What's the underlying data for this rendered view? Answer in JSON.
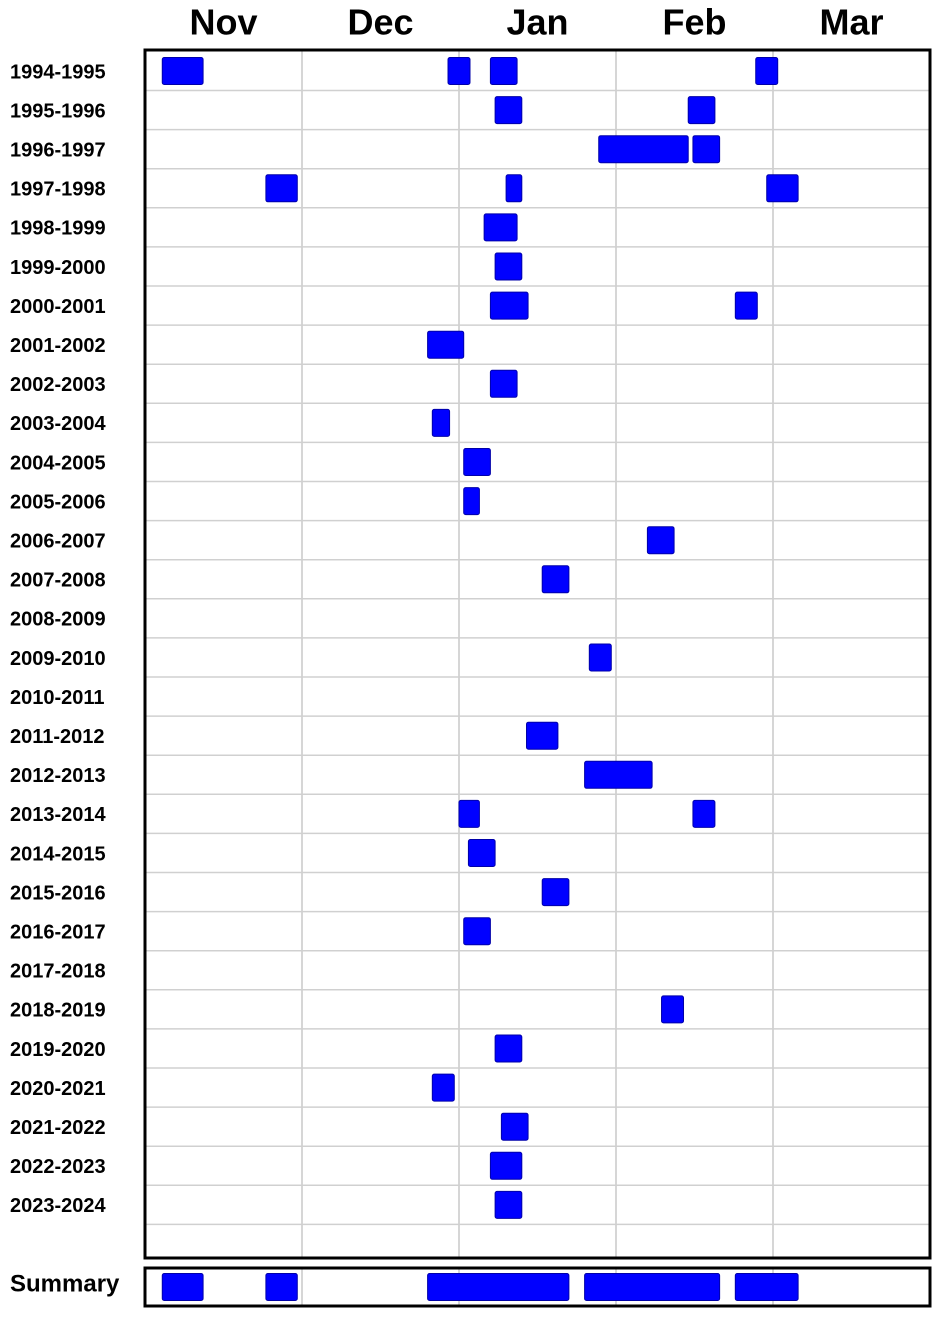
{
  "chart_data": {
    "type": "timeline",
    "month_labels": [
      "Nov",
      "Dec",
      "Jan",
      "Feb",
      "Mar"
    ],
    "xlim": [
      0,
      5
    ],
    "xticks": [
      1,
      2,
      3,
      4
    ],
    "grid": true,
    "color": "#0000ff",
    "rows": [
      {
        "label": "1994-1995",
        "intervals": [
          [
            0.11,
            0.37
          ],
          [
            1.93,
            2.07
          ],
          [
            2.2,
            2.37
          ],
          [
            3.89,
            4.03
          ]
        ]
      },
      {
        "label": "1995-1996",
        "intervals": [
          [
            2.23,
            2.4
          ],
          [
            3.46,
            3.63
          ]
        ]
      },
      {
        "label": "1996-1997",
        "intervals": [
          [
            2.89,
            3.46
          ],
          [
            3.49,
            3.66
          ]
        ]
      },
      {
        "label": "1997-1998",
        "intervals": [
          [
            0.77,
            0.97
          ],
          [
            2.3,
            2.4
          ],
          [
            3.96,
            4.16
          ]
        ]
      },
      {
        "label": "1998-1999",
        "intervals": [
          [
            2.16,
            2.37
          ]
        ]
      },
      {
        "label": "1999-2000",
        "intervals": [
          [
            2.23,
            2.4
          ]
        ]
      },
      {
        "label": "2000-2001",
        "intervals": [
          [
            2.2,
            2.44
          ],
          [
            3.76,
            3.9
          ]
        ]
      },
      {
        "label": "2001-2002",
        "intervals": [
          [
            1.8,
            2.03
          ]
        ]
      },
      {
        "label": "2002-2003",
        "intervals": [
          [
            2.2,
            2.37
          ]
        ]
      },
      {
        "label": "2003-2004",
        "intervals": [
          [
            1.83,
            1.94
          ]
        ]
      },
      {
        "label": "2004-2005",
        "intervals": [
          [
            2.03,
            2.2
          ]
        ]
      },
      {
        "label": "2005-2006",
        "intervals": [
          [
            2.03,
            2.13
          ]
        ]
      },
      {
        "label": "2006-2007",
        "intervals": [
          [
            3.2,
            3.37
          ]
        ]
      },
      {
        "label": "2007-2008",
        "intervals": [
          [
            2.53,
            2.7
          ]
        ]
      },
      {
        "label": "2008-2009",
        "intervals": []
      },
      {
        "label": "2009-2010",
        "intervals": [
          [
            2.83,
            2.97
          ]
        ]
      },
      {
        "label": "2010-2011",
        "intervals": []
      },
      {
        "label": "2011-2012",
        "intervals": [
          [
            2.43,
            2.63
          ]
        ]
      },
      {
        "label": "2012-2013",
        "intervals": [
          [
            2.8,
            3.23
          ]
        ]
      },
      {
        "label": "2013-2014",
        "intervals": [
          [
            2.0,
            2.13
          ],
          [
            3.49,
            3.63
          ]
        ]
      },
      {
        "label": "2014-2015",
        "intervals": [
          [
            2.06,
            2.23
          ]
        ]
      },
      {
        "label": "2015-2016",
        "intervals": [
          [
            2.53,
            2.7
          ]
        ]
      },
      {
        "label": "2016-2017",
        "intervals": [
          [
            2.03,
            2.2
          ]
        ]
      },
      {
        "label": "2017-2018",
        "intervals": []
      },
      {
        "label": "2018-2019",
        "intervals": [
          [
            3.29,
            3.43
          ]
        ]
      },
      {
        "label": "2019-2020",
        "intervals": [
          [
            2.23,
            2.4
          ]
        ]
      },
      {
        "label": "2020-2021",
        "intervals": [
          [
            1.83,
            1.97
          ]
        ]
      },
      {
        "label": "2021-2022",
        "intervals": [
          [
            2.27,
            2.44
          ]
        ]
      },
      {
        "label": "2022-2023",
        "intervals": [
          [
            2.2,
            2.4
          ]
        ]
      },
      {
        "label": "2023-2024",
        "intervals": [
          [
            2.23,
            2.4
          ]
        ]
      }
    ],
    "summary": {
      "label": "Summary",
      "intervals": [
        [
          0.11,
          0.37
        ],
        [
          0.77,
          0.97
        ],
        [
          1.8,
          2.7
        ],
        [
          2.8,
          3.66
        ],
        [
          3.76,
          4.16
        ]
      ]
    }
  }
}
